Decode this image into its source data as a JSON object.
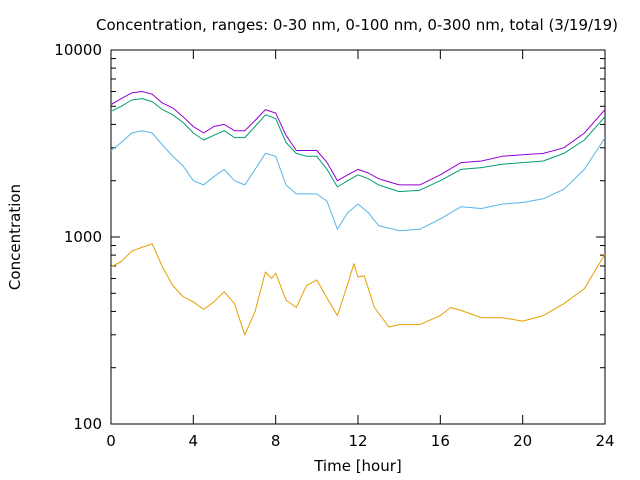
{
  "chart_data": {
    "type": "line",
    "title": "Concentration, ranges: 0-30 nm, 0-100 nm, 0-300 nm, total (3/19/19)",
    "xlabel": "Time [hour]",
    "ylabel": "Concentration",
    "xlim": [
      0,
      24
    ],
    "ylim": [
      100,
      10000
    ],
    "yscale": "log",
    "xticks": [
      0,
      4,
      8,
      12,
      16,
      20,
      24
    ],
    "xtick_labels": [
      "0",
      "4",
      "8",
      "12",
      "16",
      "20",
      "24"
    ],
    "yticks": [
      100,
      1000,
      10000
    ],
    "ytick_labels": [
      "100",
      "1000",
      "10000"
    ],
    "grid": false,
    "legend": "none",
    "series": [
      {
        "color": "#e69f00",
        "x": [
          0,
          0.5,
          1,
          1.5,
          2,
          2.5,
          3,
          3.5,
          4,
          4.5,
          5,
          5.5,
          6,
          6.5,
          7,
          7.5,
          7.8,
          8,
          8.5,
          9,
          9.5,
          10,
          10.5,
          11,
          11.5,
          11.8,
          12,
          12.3,
          12.8,
          13.5,
          14,
          15,
          16,
          16.5,
          17,
          18,
          19,
          20,
          21,
          22,
          23,
          24
        ],
        "y": [
          690,
          740,
          840,
          880,
          920,
          690,
          550,
          480,
          450,
          410,
          450,
          510,
          440,
          300,
          400,
          650,
          600,
          640,
          460,
          420,
          550,
          590,
          470,
          380,
          560,
          720,
          610,
          620,
          420,
          330,
          340,
          340,
          380,
          420,
          405,
          370,
          370,
          355,
          380,
          440,
          530,
          810
        ]
      },
      {
        "color": "#56b4e9",
        "x": [
          0,
          0.5,
          1,
          1.5,
          2,
          2.5,
          3,
          3.5,
          4,
          4.5,
          5,
          5.5,
          6,
          6.5,
          7,
          7.5,
          8,
          8.5,
          9,
          9.5,
          10,
          10.5,
          11,
          11.5,
          12,
          12.5,
          13,
          14,
          15,
          16,
          17,
          18,
          19,
          20,
          21,
          22,
          23,
          24
        ],
        "y": [
          2900,
          3200,
          3600,
          3700,
          3600,
          3100,
          2700,
          2400,
          2000,
          1900,
          2100,
          2300,
          2000,
          1900,
          2300,
          2800,
          2700,
          1900,
          1700,
          1700,
          1700,
          1550,
          1100,
          1350,
          1500,
          1350,
          1150,
          1080,
          1100,
          1250,
          1450,
          1420,
          1500,
          1530,
          1600,
          1800,
          2300,
          3400
        ]
      },
      {
        "color": "#009e73",
        "x": [
          0,
          0.5,
          1,
          1.5,
          2,
          2.5,
          3,
          3.5,
          4,
          4.5,
          5,
          5.5,
          6,
          6.5,
          7,
          7.5,
          8,
          8.5,
          9,
          9.5,
          10,
          10.5,
          11,
          11.5,
          12,
          12.5,
          13,
          14,
          15,
          16,
          17,
          18,
          19,
          20,
          21,
          22,
          23,
          24
        ],
        "y": [
          4700,
          5000,
          5400,
          5500,
          5300,
          4800,
          4500,
          4100,
          3600,
          3300,
          3500,
          3700,
          3400,
          3400,
          3900,
          4500,
          4300,
          3200,
          2800,
          2700,
          2700,
          2300,
          1850,
          2000,
          2150,
          2050,
          1900,
          1750,
          1780,
          2000,
          2300,
          2350,
          2450,
          2500,
          2550,
          2800,
          3300,
          4400
        ]
      },
      {
        "color": "#9400d3",
        "x": [
          0,
          0.5,
          1,
          1.5,
          2,
          2.5,
          3,
          3.5,
          4,
          4.5,
          5,
          5.5,
          6,
          6.5,
          7,
          7.5,
          8,
          8.5,
          9,
          9.5,
          10,
          10.5,
          11,
          11.5,
          12,
          12.5,
          13,
          14,
          15,
          16,
          17,
          18,
          19,
          20,
          21,
          22,
          23,
          24
        ],
        "y": [
          5100,
          5500,
          5900,
          6000,
          5800,
          5200,
          4900,
          4400,
          3900,
          3600,
          3900,
          4000,
          3700,
          3700,
          4200,
          4800,
          4600,
          3500,
          2900,
          2900,
          2900,
          2500,
          2000,
          2150,
          2300,
          2200,
          2050,
          1900,
          1900,
          2150,
          2500,
          2550,
          2700,
          2750,
          2800,
          3000,
          3600,
          4800
        ]
      }
    ]
  }
}
